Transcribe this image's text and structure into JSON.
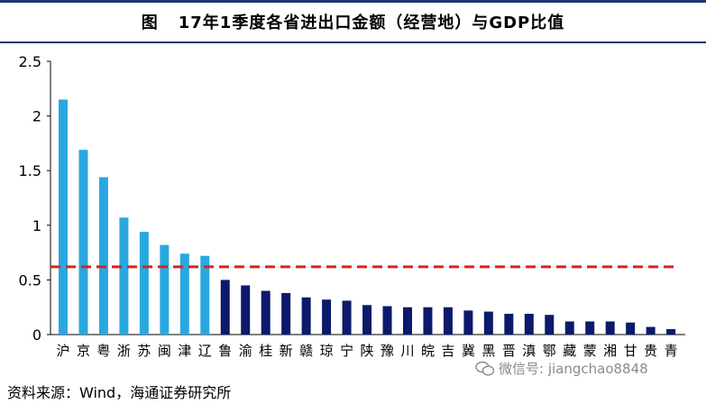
{
  "title": {
    "fig_label": "图",
    "text": "17年1季度各省进出口金额（经营地）与GDP比值"
  },
  "source": "资料来源：Wind，海通证券研究所",
  "watermark": "微信号: jiangchao8848",
  "colors": {
    "highlight_bar": "#29a8e0",
    "other_bar": "#0b1a6b",
    "reference_line": "#d9221c"
  },
  "chart_data": {
    "type": "bar",
    "categories": [
      "沪",
      "京",
      "粤",
      "浙",
      "苏",
      "闽",
      "津",
      "辽",
      "鲁",
      "渝",
      "桂",
      "新",
      "赣",
      "琼",
      "宁",
      "陕",
      "豫",
      "川",
      "皖",
      "吉",
      "冀",
      "黑",
      "晋",
      "滇",
      "鄂",
      "藏",
      "蒙",
      "湘",
      "甘",
      "贵",
      "青"
    ],
    "values": [
      2.15,
      1.69,
      1.44,
      1.07,
      0.94,
      0.82,
      0.74,
      0.72,
      0.5,
      0.45,
      0.4,
      0.38,
      0.34,
      0.32,
      0.31,
      0.27,
      0.26,
      0.25,
      0.25,
      0.25,
      0.22,
      0.21,
      0.19,
      0.19,
      0.18,
      0.12,
      0.12,
      0.12,
      0.11,
      0.07,
      0.05
    ],
    "highlight_count": 8,
    "reference_value": 0.62,
    "ylim": [
      0,
      2.5
    ],
    "yticks": [
      "0",
      "0.5",
      "1",
      "1.5",
      "2",
      "2.5"
    ],
    "grid": false
  }
}
